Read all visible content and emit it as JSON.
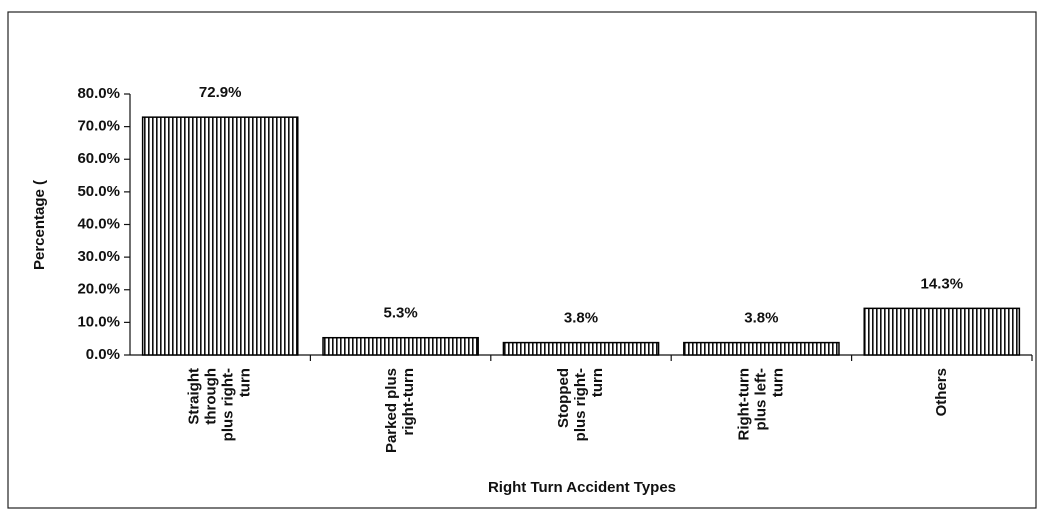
{
  "chart_data": {
    "type": "bar",
    "categories": [
      [
        "Straight",
        "through",
        "plus right-",
        "turn"
      ],
      [
        "Parked plus",
        "right-turn"
      ],
      [
        "Stopped",
        "plus right-",
        "turn"
      ],
      [
        "Right-turn",
        "plus left-",
        "turn"
      ],
      [
        "Others"
      ]
    ],
    "values": [
      72.9,
      5.3,
      3.8,
      3.8,
      14.3
    ],
    "value_labels": [
      "72.9%",
      "5.3%",
      "3.8%",
      "3.8%",
      "14.3%"
    ],
    "color": "#000000",
    "ylim": [
      0,
      80
    ],
    "yticks": [
      {
        "value": 0,
        "label": "0.0%"
      },
      {
        "value": 10,
        "label": "10.0%"
      },
      {
        "value": 20,
        "label": "20.0%"
      },
      {
        "value": 30,
        "label": "30.0%"
      },
      {
        "value": 40,
        "label": "40.0%"
      },
      {
        "value": 50,
        "label": "50.0%"
      },
      {
        "value": 60,
        "label": "60.0%"
      },
      {
        "value": 70,
        "label": "70.0%"
      },
      {
        "value": 80,
        "label": "80.0%"
      }
    ],
    "y_label": "Percentage (",
    "x_label": "Right Turn Accident Types"
  }
}
